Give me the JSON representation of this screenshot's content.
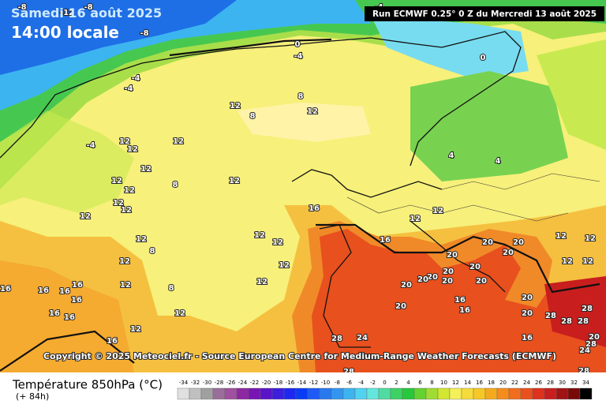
{
  "header": {
    "date": "Samedi 16 août 2025",
    "time": "14:00 locale",
    "run": "Run ECMWF 0.25° 0 Z du Mercredi 13 août 2025"
  },
  "copyright": "Copyright © 2025 Meteociel.fr - Source European Centre for Medium-Range Weather Forecasts (ECMWF)",
  "contour_labels": [
    "-8",
    "-12",
    "-8",
    "-8",
    "-4",
    "0",
    "-4",
    "0",
    "-4",
    "-4",
    "-4",
    "8",
    "12",
    "12",
    "8",
    "12",
    "12",
    "12",
    "12",
    "12",
    "12",
    "8",
    "12",
    "12",
    "12",
    "12",
    "12",
    "12",
    "12",
    "16",
    "16",
    "12",
    "12",
    "4",
    "4",
    "12",
    "12",
    "12",
    "12",
    "20",
    "20",
    "20",
    "20",
    "20",
    "20",
    "20",
    "20",
    "20",
    "20",
    "20",
    "16",
    "16",
    "20",
    "20",
    "20",
    "28",
    "28",
    "28",
    "28",
    "20",
    "28",
    "24",
    "28",
    "24",
    "28",
    "28",
    "16",
    "12",
    "12",
    "12",
    "12",
    "12",
    "12",
    "16",
    "16",
    "16",
    "16",
    "16",
    "16",
    "16",
    "16",
    "8",
    "8"
  ],
  "legend": {
    "title": "Température 850hPa (°C)",
    "subtitle": "(+ 84h)",
    "ticks": [
      -34,
      -32,
      -30,
      -28,
      -26,
      -24,
      -22,
      -20,
      -18,
      -16,
      -14,
      -12,
      -10,
      -8,
      -6,
      -4,
      -2,
      0,
      2,
      4,
      6,
      8,
      10,
      12,
      14,
      16,
      18,
      20,
      22,
      24,
      26,
      28,
      30,
      32,
      34
    ],
    "colors": [
      "#e0e0e0",
      "#c0c0c0",
      "#a0a0a0",
      "#9a6e9a",
      "#a050a0",
      "#8c28a0",
      "#7814b4",
      "#5a14c8",
      "#3c1edc",
      "#1e28f0",
      "#0a3cf5",
      "#1e5af5",
      "#2878f0",
      "#3296f0",
      "#3cb4f0",
      "#50d2f0",
      "#64e6dc",
      "#50dca0",
      "#3cd264",
      "#28c83c",
      "#64d232",
      "#a0dc32",
      "#d2e632",
      "#f5f05a",
      "#f5dc3c",
      "#f5c828",
      "#f5aa1e",
      "#f58c1e",
      "#f06e1e",
      "#e8501e",
      "#dc321e",
      "#c81e1e",
      "#a01414",
      "#780a0a",
      "#000000"
    ]
  }
}
